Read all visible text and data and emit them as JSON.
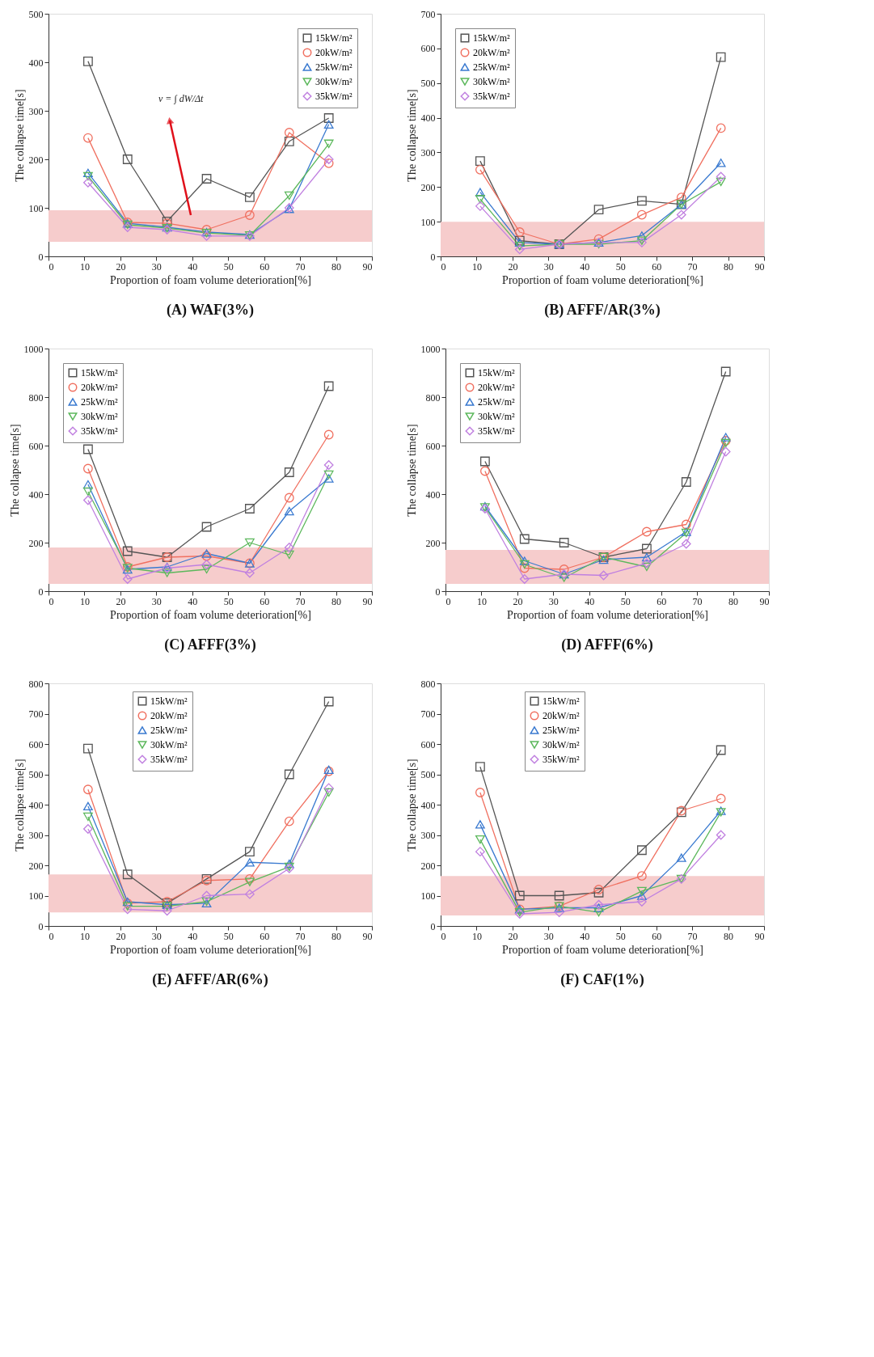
{
  "chart_data": [
    {
      "type": "line",
      "title": "(A) WAF(3%)",
      "xlabel": "Proportion of foam volume deterioration[%]",
      "ylabel": "The collapse time[s]",
      "x": [
        11,
        22,
        33,
        44,
        56,
        67,
        78
      ],
      "xlim": [
        0,
        90
      ],
      "xticks": [
        0,
        10,
        20,
        30,
        40,
        50,
        60,
        70,
        80,
        90
      ],
      "ylim": [
        0,
        500
      ],
      "yticks": [
        0,
        100,
        200,
        300,
        400,
        500
      ],
      "legend": "top right",
      "grid": false,
      "series": [
        {
          "name": "15kW/m²",
          "color": "#555555",
          "marker": "square",
          "values": [
            402,
            200,
            72,
            160,
            122,
            237,
            285
          ]
        },
        {
          "name": "20kW/m²",
          "color": "#f07060",
          "marker": "circle",
          "values": [
            244,
            70,
            68,
            55,
            85,
            255,
            192
          ]
        },
        {
          "name": "25kW/m²",
          "color": "#3a7ad0",
          "marker": "triangle",
          "values": [
            172,
            68,
            60,
            50,
            45,
            98,
            272
          ]
        },
        {
          "name": "30kW/m²",
          "color": "#5cb85c",
          "marker": "triangle_down",
          "values": [
            165,
            65,
            58,
            48,
            43,
            125,
            232
          ]
        },
        {
          "name": "35kW/m²",
          "color": "#c080e0",
          "marker": "diamond",
          "values": [
            152,
            60,
            55,
            42,
            42,
            100,
            200
          ]
        }
      ],
      "bands": [
        {
          "axis": "y",
          "from": 30,
          "to": 95,
          "color": "#f6cccc"
        }
      ],
      "annotations": [
        "v = ∫ dW/Δt"
      ]
    },
    {
      "type": "line",
      "title": "(B) AFFF/AR(3%)",
      "xlabel": "Proportion of foam volume deterioration[%]",
      "ylabel": "The collapse time[s]",
      "x": [
        11,
        22,
        33,
        44,
        56,
        67,
        78
      ],
      "xlim": [
        0,
        90
      ],
      "xticks": [
        0,
        10,
        20,
        30,
        40,
        50,
        60,
        70,
        80,
        90
      ],
      "ylim": [
        0,
        700
      ],
      "yticks": [
        0,
        100,
        200,
        300,
        400,
        500,
        600,
        700
      ],
      "legend": "top left",
      "grid": false,
      "series": [
        {
          "name": "15kW/m²",
          "color": "#555555",
          "marker": "square",
          "values": [
            275,
            45,
            35,
            135,
            160,
            150,
            575
          ]
        },
        {
          "name": "20kW/m²",
          "color": "#f07060",
          "marker": "circle",
          "values": [
            250,
            70,
            35,
            50,
            120,
            170,
            370
          ]
        },
        {
          "name": "25kW/m²",
          "color": "#3a7ad0",
          "marker": "triangle",
          "values": [
            185,
            40,
            35,
            40,
            60,
            150,
            270
          ]
        },
        {
          "name": "30kW/m²",
          "color": "#5cb85c",
          "marker": "triangle_down",
          "values": [
            165,
            30,
            35,
            35,
            45,
            150,
            215
          ]
        },
        {
          "name": "35kW/m²",
          "color": "#c080e0",
          "marker": "diamond",
          "values": [
            145,
            20,
            35,
            40,
            40,
            120,
            230
          ]
        }
      ],
      "bands": [
        {
          "axis": "y",
          "from": 0,
          "to": 100,
          "color": "#f6cccc"
        }
      ]
    },
    {
      "type": "line",
      "title": "(C) AFFF(3%)",
      "xlabel": "Proportion of foam volume deterioration[%]",
      "ylabel": "The collapse time[s]",
      "x": [
        11,
        22,
        33,
        44,
        56,
        67,
        78
      ],
      "xlim": [
        0,
        90
      ],
      "xticks": [
        0,
        10,
        20,
        30,
        40,
        50,
        60,
        70,
        80,
        90
      ],
      "ylim": [
        0,
        1000
      ],
      "yticks": [
        0,
        200,
        400,
        600,
        800,
        1000
      ],
      "legend": "top left",
      "grid": false,
      "series": [
        {
          "name": "15kW/m²",
          "color": "#555555",
          "marker": "square",
          "values": [
            585,
            165,
            140,
            265,
            340,
            490,
            845
          ]
        },
        {
          "name": "20kW/m²",
          "color": "#f07060",
          "marker": "circle",
          "values": [
            505,
            100,
            140,
            145,
            115,
            385,
            645
          ]
        },
        {
          "name": "25kW/m²",
          "color": "#3a7ad0",
          "marker": "triangle",
          "values": [
            440,
            90,
            100,
            155,
            115,
            330,
            465
          ]
        },
        {
          "name": "30kW/m²",
          "color": "#5cb85c",
          "marker": "triangle_down",
          "values": [
            410,
            95,
            75,
            90,
            200,
            150,
            480
          ]
        },
        {
          "name": "35kW/m²",
          "color": "#c080e0",
          "marker": "diamond",
          "values": [
            375,
            50,
            95,
            110,
            75,
            180,
            520
          ]
        }
      ],
      "bands": [
        {
          "axis": "y",
          "from": 30,
          "to": 180,
          "color": "#f6cccc"
        }
      ]
    },
    {
      "type": "line",
      "title": "(D) AFFF(6%)",
      "xlabel": "Proportion of foam volume deterioration[%]",
      "ylabel": "The collapse time[s]",
      "x": [
        11,
        22,
        33,
        44,
        56,
        67,
        78
      ],
      "xlim": [
        0,
        90
      ],
      "xticks": [
        0,
        10,
        20,
        30,
        40,
        50,
        60,
        70,
        80,
        90
      ],
      "ylim": [
        0,
        1000
      ],
      "yticks": [
        0,
        200,
        400,
        600,
        800,
        1000
      ],
      "legend": "top left",
      "grid": false,
      "series": [
        {
          "name": "15kW/m²",
          "color": "#555555",
          "marker": "square",
          "values": [
            535,
            215,
            200,
            140,
            175,
            450,
            905
          ]
        },
        {
          "name": "20kW/m²",
          "color": "#f07060",
          "marker": "circle",
          "values": [
            495,
            95,
            90,
            140,
            245,
            275,
            620
          ]
        },
        {
          "name": "25kW/m²",
          "color": "#3a7ad0",
          "marker": "triangle",
          "values": [
            350,
            125,
            70,
            130,
            140,
            245,
            635
          ]
        },
        {
          "name": "30kW/m²",
          "color": "#5cb85c",
          "marker": "triangle_down",
          "values": [
            345,
            110,
            55,
            140,
            100,
            240,
            610
          ]
        },
        {
          "name": "35kW/m²",
          "color": "#c080e0",
          "marker": "diamond",
          "values": [
            340,
            50,
            70,
            65,
            115,
            195,
            575
          ]
        }
      ],
      "bands": [
        {
          "axis": "y",
          "from": 30,
          "to": 170,
          "color": "#f6cccc"
        }
      ]
    },
    {
      "type": "line",
      "title": "(E) AFFF/AR(6%)",
      "xlabel": "Proportion of foam volume deterioration[%]",
      "ylabel": "The collapse time[s]",
      "x": [
        11,
        22,
        33,
        44,
        56,
        67,
        78
      ],
      "xlim": [
        0,
        90
      ],
      "xticks": [
        0,
        10,
        20,
        30,
        40,
        50,
        60,
        70,
        80,
        90
      ],
      "ylim": [
        0,
        800
      ],
      "yticks": [
        0,
        100,
        200,
        300,
        400,
        500,
        600,
        700,
        800
      ],
      "legend": "top",
      "grid": false,
      "series": [
        {
          "name": "15kW/m²",
          "color": "#555555",
          "marker": "square",
          "values": [
            585,
            170,
            75,
            155,
            245,
            500,
            740
          ]
        },
        {
          "name": "20kW/m²",
          "color": "#f07060",
          "marker": "circle",
          "values": [
            450,
            75,
            80,
            150,
            155,
            345,
            510
          ]
        },
        {
          "name": "25kW/m²",
          "color": "#3a7ad0",
          "marker": "triangle",
          "values": [
            395,
            80,
            70,
            75,
            210,
            205,
            515
          ]
        },
        {
          "name": "30kW/m²",
          "color": "#5cb85c",
          "marker": "triangle_down",
          "values": [
            360,
            65,
            65,
            80,
            145,
            195,
            440
          ]
        },
        {
          "name": "35kW/m²",
          "color": "#c080e0",
          "marker": "diamond",
          "values": [
            320,
            55,
            50,
            100,
            105,
            190,
            455
          ]
        }
      ],
      "bands": [
        {
          "axis": "y",
          "from": 45,
          "to": 170,
          "color": "#f6cccc"
        }
      ]
    },
    {
      "type": "line",
      "title": "(F) CAF(1%)",
      "xlabel": "Proportion of foam volume deterioration[%]",
      "ylabel": "The collapse time[s]",
      "x": [
        11,
        22,
        33,
        44,
        56,
        67,
        78
      ],
      "xlim": [
        0,
        90
      ],
      "xticks": [
        0,
        10,
        20,
        30,
        40,
        50,
        60,
        70,
        80,
        90
      ],
      "ylim": [
        0,
        800
      ],
      "yticks": [
        0,
        100,
        200,
        300,
        400,
        500,
        600,
        700,
        800
      ],
      "legend": "top",
      "grid": false,
      "series": [
        {
          "name": "15kW/m²",
          "color": "#555555",
          "marker": "square",
          "values": [
            525,
            100,
            100,
            110,
            250,
            375,
            580
          ]
        },
        {
          "name": "20kW/m²",
          "color": "#f07060",
          "marker": "circle",
          "values": [
            440,
            55,
            65,
            120,
            165,
            380,
            420
          ]
        },
        {
          "name": "25kW/m²",
          "color": "#3a7ad0",
          "marker": "triangle",
          "values": [
            335,
            55,
            60,
            60,
            100,
            225,
            380
          ]
        },
        {
          "name": "30kW/m²",
          "color": "#5cb85c",
          "marker": "triangle_down",
          "values": [
            285,
            45,
            65,
            45,
            115,
            155,
            375
          ]
        },
        {
          "name": "35kW/m²",
          "color": "#c080e0",
          "marker": "diamond",
          "values": [
            245,
            40,
            45,
            70,
            80,
            155,
            300
          ]
        }
      ],
      "bands": [
        {
          "axis": "y",
          "from": 35,
          "to": 165,
          "color": "#f6cccc"
        }
      ]
    }
  ]
}
